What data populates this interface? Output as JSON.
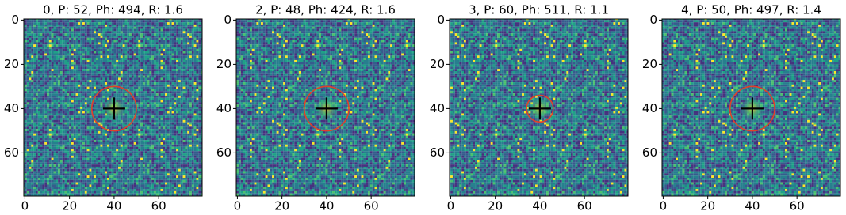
{
  "chart_data": [
    {
      "type": "image",
      "title": "0, P: 52, Ph: 494, R: 1.6",
      "xlim": [
        -0.5,
        79.5
      ],
      "ylim": [
        79.5,
        -0.5
      ],
      "xticks": [
        0,
        20,
        40,
        60
      ],
      "yticks": [
        0,
        20,
        40,
        60
      ],
      "circle": {
        "x": 40,
        "y": 40,
        "r": 10,
        "color": "#e0402a"
      },
      "marker": {
        "x": 40,
        "y": 40,
        "color": "#000000"
      }
    },
    {
      "type": "image",
      "title": "2, P: 48, Ph: 424, R: 1.6",
      "xlim": [
        -0.5,
        79.5
      ],
      "ylim": [
        79.5,
        -0.5
      ],
      "xticks": [
        0,
        20,
        40,
        60
      ],
      "yticks": [
        0,
        20,
        40,
        60
      ],
      "circle": {
        "x": 40,
        "y": 40,
        "r": 10,
        "color": "#e0402a"
      },
      "marker": {
        "x": 40,
        "y": 40,
        "color": "#000000"
      }
    },
    {
      "type": "image",
      "title": "3, P: 60, Ph: 511, R: 1.1",
      "xlim": [
        -0.5,
        79.5
      ],
      "ylim": [
        79.5,
        -0.5
      ],
      "xticks": [
        0,
        20,
        40,
        60
      ],
      "yticks": [
        0,
        20,
        40,
        60
      ],
      "circle": {
        "x": 40,
        "y": 40,
        "r": 6,
        "color": "#e0402a"
      },
      "marker": {
        "x": 40,
        "y": 40,
        "color": "#000000"
      }
    },
    {
      "type": "image",
      "title": "4, P: 50, Ph: 497, R: 1.4",
      "xlim": [
        -0.5,
        79.5
      ],
      "ylim": [
        79.5,
        -0.5
      ],
      "xticks": [
        0,
        20,
        40,
        60
      ],
      "yticks": [
        0,
        20,
        40,
        60
      ],
      "circle": {
        "x": 40,
        "y": 40,
        "r": 10,
        "color": "#e0402a"
      },
      "marker": {
        "x": 40,
        "y": 40,
        "color": "#000000"
      }
    }
  ]
}
